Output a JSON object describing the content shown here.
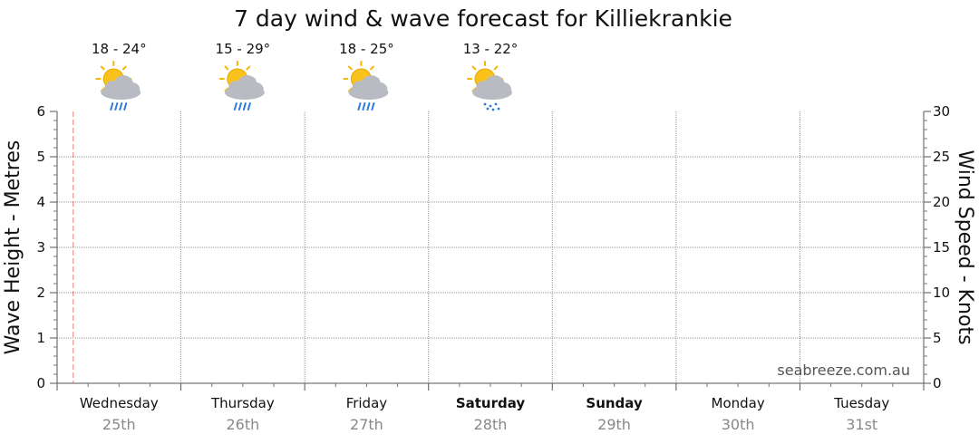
{
  "chart_data": {
    "type": "line",
    "title": "7 day wind & wave forecast for Killiekrankie",
    "ylabel_left": "Wave Height - Metres",
    "ylabel_right": "Wind Speed - Knots",
    "ylim_left": [
      0,
      6
    ],
    "ylim_right": [
      0,
      30
    ],
    "yticks_left": [
      "0",
      "1",
      "2",
      "3",
      "4",
      "5",
      "6"
    ],
    "yticks_right": [
      "0",
      "5",
      "10",
      "15",
      "20",
      "25",
      "30"
    ],
    "grid": true,
    "days": [
      {
        "name": "Wednesday",
        "date": "25th",
        "bold": false
      },
      {
        "name": "Thursday",
        "date": "26th",
        "bold": false
      },
      {
        "name": "Friday",
        "date": "27th",
        "bold": false
      },
      {
        "name": "Saturday",
        "date": "28th",
        "bold": true
      },
      {
        "name": "Sunday",
        "date": "29th",
        "bold": true
      },
      {
        "name": "Monday",
        "date": "30th",
        "bold": false
      },
      {
        "name": "Tuesday",
        "date": "31st",
        "bold": false
      }
    ],
    "forecasts": [
      {
        "temp": "18 - 24°",
        "icon": "sun-cloud-rain-icon",
        "precip": "rain"
      },
      {
        "temp": "15 - 29°",
        "icon": "sun-cloud-rain-icon",
        "precip": "rain"
      },
      {
        "temp": "18 - 25°",
        "icon": "sun-cloud-rain-icon",
        "precip": "rain"
      },
      {
        "temp": "13 - 22°",
        "icon": "sun-cloud-showers-icon",
        "precip": "drizzle"
      }
    ],
    "series": [],
    "now_marker_color": "#e88080",
    "watermark": "seabreeze.com.au"
  }
}
